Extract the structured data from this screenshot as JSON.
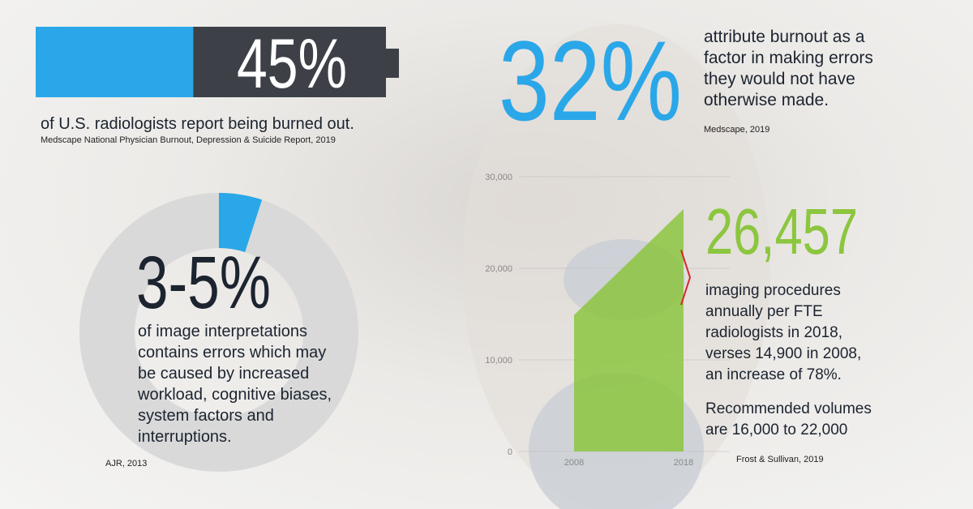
{
  "stat1": {
    "value": 45,
    "label": "45%",
    "text": "of U.S. radiologists report being burned out.",
    "source": "Medscape National Physician Burnout, Depression & Suicide Report, 2019"
  },
  "stat2": {
    "label": "32%",
    "text": "attribute burnout as a factor in making errors they would not have otherwise made.",
    "source": "Medscape, 2019"
  },
  "donut": {
    "range": [
      3,
      5
    ],
    "label": "3-5%",
    "text": "of image interpretations contains errors which may be caused by increased workload, cognitive biases, system factors and interruptions.",
    "source": "AJR, 2013"
  },
  "chart_data": {
    "type": "area",
    "x": [
      2008,
      2018
    ],
    "values": [
      14900,
      26457
    ],
    "value_labels": [
      null,
      "26,457"
    ],
    "color": "#8cc63f",
    "xlim": [
      2008,
      2018
    ],
    "ylim": [
      0,
      30000
    ],
    "yticks": [
      0,
      {
        "value": 10000,
        "label": "10,000"
      },
      {
        "value": 20000,
        "label": "20,000"
      },
      {
        "value": 30000,
        "label": "30,000"
      }
    ],
    "recommended": [
      16000,
      22000
    ],
    "text": "imaging procedures annually per FTE radiologists in 2018, verses 14,900 in 2008, an increase of 78%.",
    "note": "Recommended volumes are 16,000 to 22,000",
    "source": "Frost & Sullivan, 2019"
  }
}
